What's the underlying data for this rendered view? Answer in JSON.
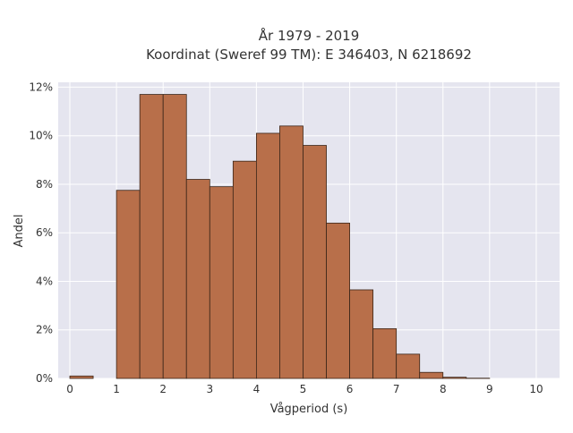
{
  "chart_data": {
    "type": "bar",
    "title_lines": [
      "År 1979 - 2019",
      "Koordinat (Sweref 99 TM): E 346403, N 6218692"
    ],
    "xlabel": "Vågperiod (s)",
    "ylabel": "Andel",
    "bin_width": 0.5,
    "bins": [
      {
        "start": 0.0,
        "value": 0.1
      },
      {
        "start": 0.5,
        "value": 0.0
      },
      {
        "start": 1.0,
        "value": 7.75
      },
      {
        "start": 1.5,
        "value": 11.7
      },
      {
        "start": 2.0,
        "value": 11.7
      },
      {
        "start": 2.5,
        "value": 8.2
      },
      {
        "start": 3.0,
        "value": 7.9
      },
      {
        "start": 3.5,
        "value": 8.95
      },
      {
        "start": 4.0,
        "value": 10.1
      },
      {
        "start": 4.5,
        "value": 10.4
      },
      {
        "start": 5.0,
        "value": 9.6
      },
      {
        "start": 5.5,
        "value": 6.4
      },
      {
        "start": 6.0,
        "value": 3.65
      },
      {
        "start": 6.5,
        "value": 2.05
      },
      {
        "start": 7.0,
        "value": 1.0
      },
      {
        "start": 7.5,
        "value": 0.25
      },
      {
        "start": 8.0,
        "value": 0.05
      },
      {
        "start": 8.5,
        "value": 0.01
      }
    ],
    "xlim": [
      -0.25,
      10.5
    ],
    "ylim": [
      0,
      12.2
    ],
    "xticks": [
      0,
      1,
      2,
      3,
      4,
      5,
      6,
      7,
      8,
      9,
      10
    ],
    "yticks": [
      0,
      2,
      4,
      6,
      8,
      10,
      12
    ],
    "ytick_labels": [
      "0%",
      "2%",
      "4%",
      "6%",
      "8%",
      "10%",
      "12%"
    ],
    "grid": true,
    "bar_color": "#b86f4a",
    "bar_edge_color": "#3a2518",
    "plot_background": "#e5e5ef"
  }
}
